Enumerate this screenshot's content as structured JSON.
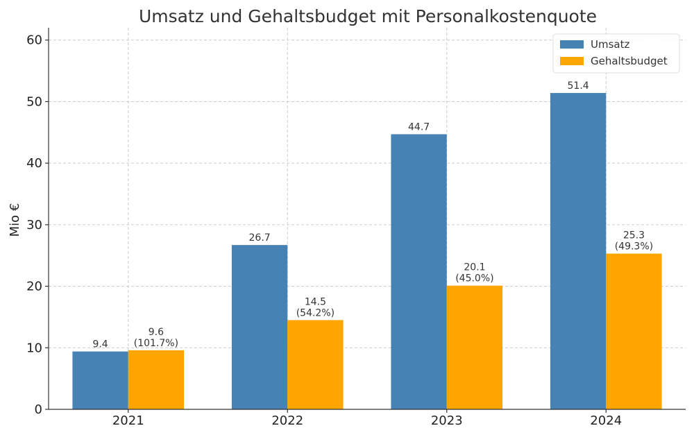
{
  "chart_data": {
    "type": "bar",
    "title": "Umsatz und Gehaltsbudget mit Personalkostenquote",
    "xlabel": "",
    "ylabel": "Mio €",
    "ylim": [
      0,
      62
    ],
    "yticks": [
      0,
      10,
      20,
      30,
      40,
      50,
      60
    ],
    "grid": true,
    "legend_position": "top-right",
    "categories": [
      "2021",
      "2022",
      "2023",
      "2024"
    ],
    "series": [
      {
        "name": "Umsatz",
        "color": "#4682b4",
        "values": [
          9.4,
          26.7,
          44.7,
          51.4
        ],
        "labels": [
          [
            "9.4"
          ],
          [
            "26.7"
          ],
          [
            "44.7"
          ],
          [
            "51.4"
          ]
        ]
      },
      {
        "name": "Gehaltsbudget",
        "color": "#ffa500",
        "values": [
          9.6,
          14.5,
          20.1,
          25.3
        ],
        "labels": [
          [
            "9.6",
            "(101.7%)"
          ],
          [
            "14.5",
            "(54.2%)"
          ],
          [
            "20.1",
            "(45.0%)"
          ],
          [
            "25.3",
            "(49.3%)"
          ]
        ]
      }
    ]
  }
}
